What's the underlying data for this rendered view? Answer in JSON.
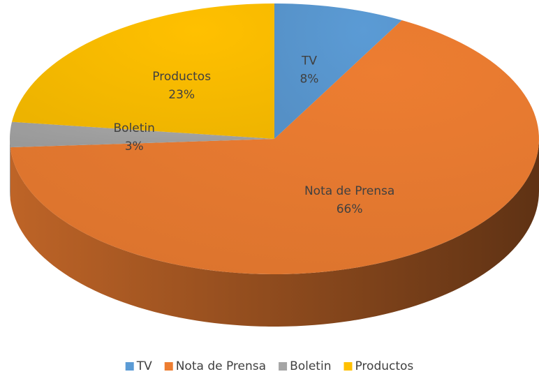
{
  "chart_data": {
    "type": "pie",
    "categories": [
      "TV",
      "Nota de Prensa",
      "Boletin",
      "Productos"
    ],
    "values": [
      8,
      66,
      3,
      23
    ],
    "value_labels": [
      "8%",
      "66%",
      "3%",
      "23%"
    ],
    "colors": [
      "#5b9bd5",
      "#ed7d31",
      "#a5a5a5",
      "#ffc000"
    ],
    "legend": "bottom"
  }
}
